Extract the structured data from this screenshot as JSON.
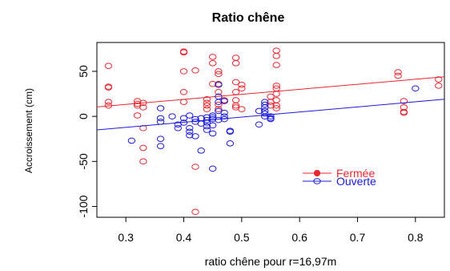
{
  "chart_data": {
    "type": "scatter",
    "title": "Ratio chêne",
    "xlabel": "ratio chêne pour r=16,97m",
    "ylabel": "Accroissement (cm)",
    "xlim": [
      0.25,
      0.85
    ],
    "ylim": [
      -112,
      82
    ],
    "xticks": [
      "0.3",
      "0.4",
      "0.5",
      "0.6",
      "0.7",
      "0.8"
    ],
    "yticks": [
      "-100",
      "-50",
      "0",
      "50"
    ],
    "grid": false,
    "legend_position": "right",
    "series": [
      {
        "name": "Fermée",
        "color": "#e8272f",
        "points": [
          [
            0.27,
            56
          ],
          [
            0.27,
            33
          ],
          [
            0.27,
            32
          ],
          [
            0.27,
            16
          ],
          [
            0.27,
            12
          ],
          [
            0.32,
            17
          ],
          [
            0.32,
            14
          ],
          [
            0.32,
            12
          ],
          [
            0.32,
            1
          ],
          [
            0.33,
            15
          ],
          [
            0.33,
            10
          ],
          [
            0.33,
            -13
          ],
          [
            0.33,
            -35
          ],
          [
            0.33,
            -50
          ],
          [
            0.4,
            72
          ],
          [
            0.4,
            71
          ],
          [
            0.4,
            50
          ],
          [
            0.4,
            27
          ],
          [
            0.4,
            16
          ],
          [
            0.42,
            51
          ],
          [
            0.42,
            -56
          ],
          [
            0.42,
            -106
          ],
          [
            0.44,
            19
          ],
          [
            0.44,
            15
          ],
          [
            0.44,
            12
          ],
          [
            0.44,
            8
          ],
          [
            0.45,
            66
          ],
          [
            0.45,
            59
          ],
          [
            0.45,
            36
          ],
          [
            0.46,
            50
          ],
          [
            0.46,
            47
          ],
          [
            0.46,
            36
          ],
          [
            0.46,
            27
          ],
          [
            0.46,
            13
          ],
          [
            0.46,
            8
          ],
          [
            0.47,
            18
          ],
          [
            0.47,
            17
          ],
          [
            0.49,
            65
          ],
          [
            0.49,
            59
          ],
          [
            0.49,
            38
          ],
          [
            0.49,
            27
          ],
          [
            0.49,
            18
          ],
          [
            0.49,
            12
          ],
          [
            0.49,
            10
          ],
          [
            0.5,
            35
          ],
          [
            0.5,
            31
          ],
          [
            0.5,
            8
          ],
          [
            0.55,
            22
          ],
          [
            0.55,
            16
          ],
          [
            0.55,
            12
          ],
          [
            0.56,
            73
          ],
          [
            0.56,
            67
          ],
          [
            0.56,
            57
          ],
          [
            0.56,
            34
          ],
          [
            0.56,
            31
          ],
          [
            0.56,
            25
          ],
          [
            0.56,
            18
          ],
          [
            0.56,
            12
          ],
          [
            0.56,
            9
          ],
          [
            0.77,
            49
          ],
          [
            0.77,
            45
          ],
          [
            0.78,
            17
          ],
          [
            0.78,
            10
          ],
          [
            0.78,
            5
          ],
          [
            0.78,
            4
          ],
          [
            0.84,
            41
          ],
          [
            0.84,
            34
          ]
        ],
        "trend": [
          [
            0.25,
            10.5
          ],
          [
            0.85,
            44
          ]
        ]
      },
      {
        "name": "Ouverte",
        "color": "#1a1adb",
        "points": [
          [
            0.31,
            -27
          ],
          [
            0.36,
            9
          ],
          [
            0.36,
            -2
          ],
          [
            0.36,
            -6
          ],
          [
            0.36,
            -25
          ],
          [
            0.36,
            -33
          ],
          [
            0.38,
            0
          ],
          [
            0.39,
            -9
          ],
          [
            0.39,
            -13
          ],
          [
            0.4,
            -2
          ],
          [
            0.4,
            -7
          ],
          [
            0.41,
            1
          ],
          [
            0.41,
            -13
          ],
          [
            0.41,
            -17
          ],
          [
            0.41,
            -21
          ],
          [
            0.42,
            -3
          ],
          [
            0.42,
            -6
          ],
          [
            0.42,
            -22
          ],
          [
            0.43,
            -2
          ],
          [
            0.43,
            -8
          ],
          [
            0.43,
            -38
          ],
          [
            0.44,
            -1
          ],
          [
            0.44,
            -4
          ],
          [
            0.44,
            -7
          ],
          [
            0.44,
            -11
          ],
          [
            0.44,
            -15
          ],
          [
            0.45,
            1
          ],
          [
            0.45,
            -1
          ],
          [
            0.45,
            -3
          ],
          [
            0.45,
            -10
          ],
          [
            0.45,
            -19
          ],
          [
            0.45,
            -58
          ],
          [
            0.46,
            35
          ],
          [
            0.46,
            22
          ],
          [
            0.46,
            16
          ],
          [
            0.46,
            6
          ],
          [
            0.46,
            -4
          ],
          [
            0.47,
            17
          ],
          [
            0.47,
            4
          ],
          [
            0.47,
            0
          ],
          [
            0.47,
            -3
          ],
          [
            0.48,
            -16
          ],
          [
            0.48,
            -17
          ],
          [
            0.48,
            -30
          ],
          [
            0.53,
            6
          ],
          [
            0.53,
            -9
          ],
          [
            0.54,
            16
          ],
          [
            0.54,
            13
          ],
          [
            0.54,
            10
          ],
          [
            0.54,
            6
          ],
          [
            0.54,
            3
          ],
          [
            0.54,
            0
          ],
          [
            0.55,
            0
          ],
          [
            0.55,
            -2
          ],
          [
            0.55,
            -3
          ],
          [
            0.8,
            31
          ]
        ],
        "trend": [
          [
            0.25,
            -15
          ],
          [
            0.85,
            19
          ]
        ]
      }
    ]
  }
}
